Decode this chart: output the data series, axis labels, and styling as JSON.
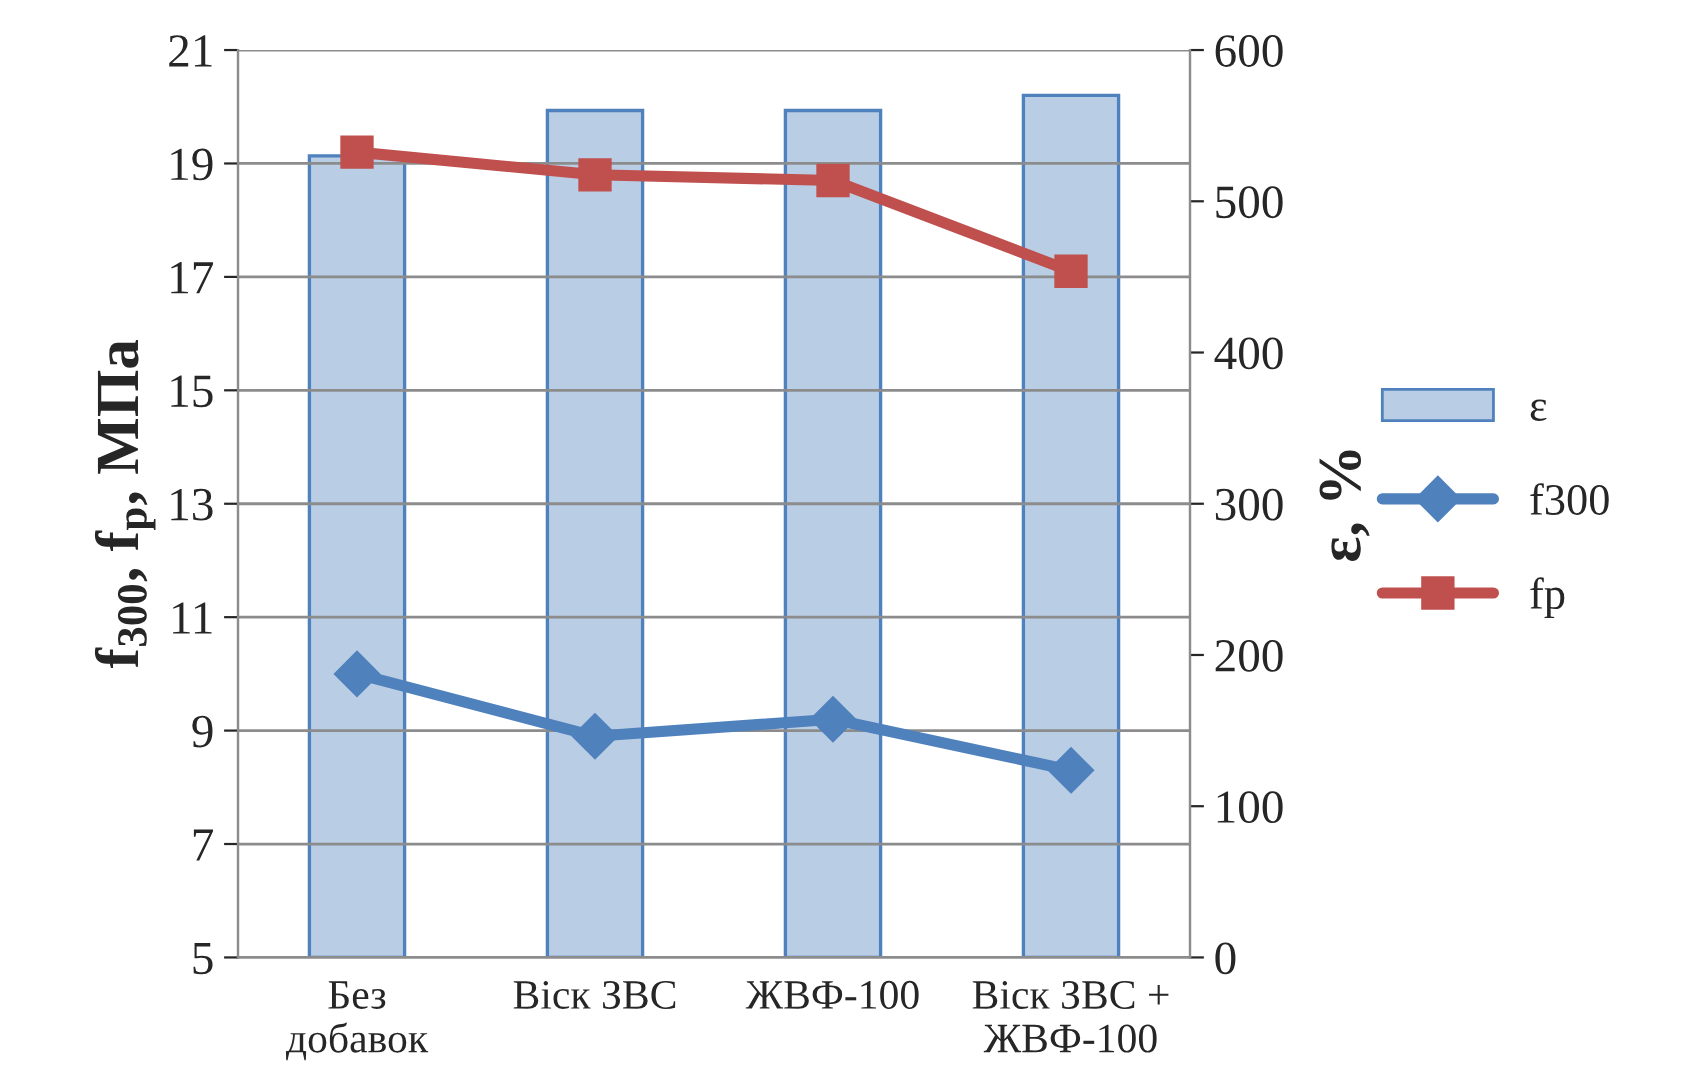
{
  "chart_data": {
    "type": "bar",
    "categories": [
      "Без\nдобавок",
      "Віск ЗВС",
      "ЖВФ-100",
      "Віск ЗВС +\nЖВФ-100"
    ],
    "series": [
      {
        "name": "ε",
        "axis": "y2",
        "color": "#b9cde5",
        "values": [
          530,
          560,
          560,
          570
        ]
      },
      {
        "name": "f300",
        "type": "line",
        "color": "#4f81bd",
        "marker": "diamond",
        "values": [
          10.0,
          8.9,
          9.2,
          8.3
        ]
      },
      {
        "name": "fp",
        "type": "line",
        "color": "#c0504d",
        "marker": "square",
        "values": [
          19.2,
          18.8,
          18.7,
          17.1
        ]
      }
    ],
    "ylabel": "f$_{300}$, f$_{p}$, МПа",
    "y2label": "ε, %",
    "ylim": [
      5,
      21
    ],
    "yticks": [
      5,
      7,
      9,
      11,
      13,
      15,
      17,
      19,
      21
    ],
    "y2lim": [
      0,
      600
    ],
    "y2ticks": [
      0,
      100,
      200,
      300,
      400,
      500,
      600
    ],
    "grid": "y",
    "legend": "right"
  }
}
